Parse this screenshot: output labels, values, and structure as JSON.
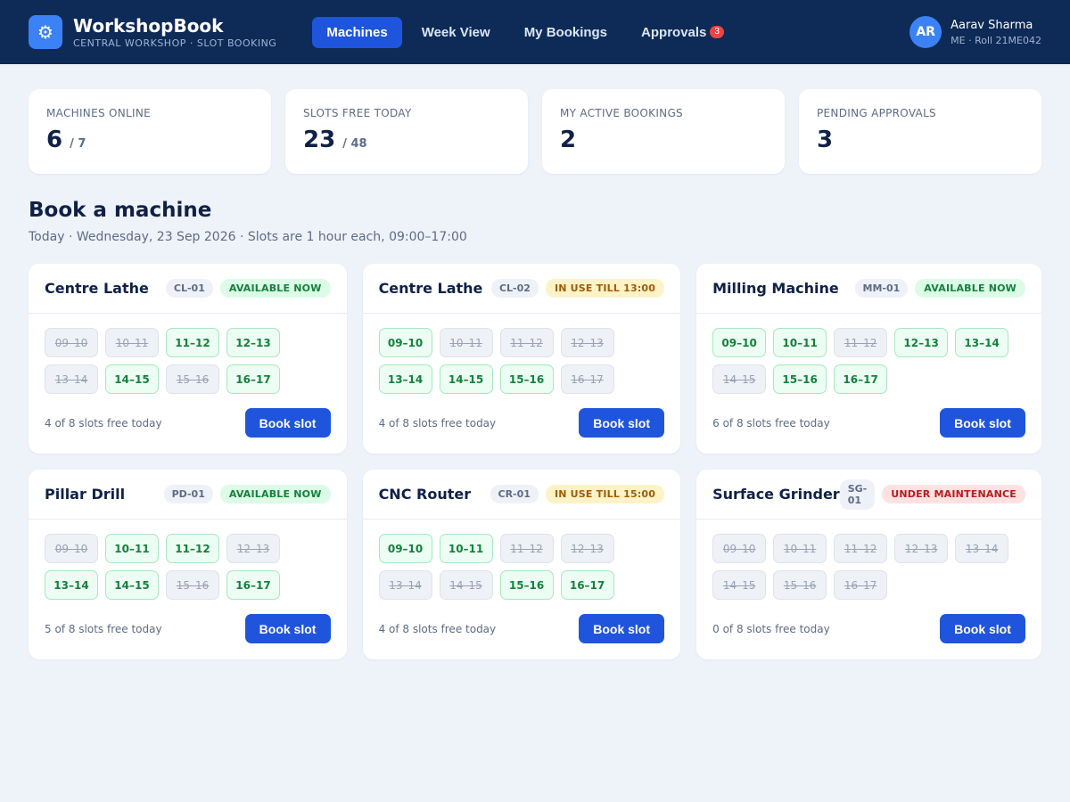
{
  "app": {
    "title": "WorkshopBook",
    "subtitle": "CENTRAL WORKSHOP · SLOT BOOKING",
    "logo_icon": "gear-icon",
    "logo_glyph": "⚙"
  },
  "nav": [
    {
      "label": "Machines",
      "active": true,
      "count": ""
    },
    {
      "label": "Week View",
      "active": false,
      "count": ""
    },
    {
      "label": "My Bookings",
      "active": false,
      "count": ""
    },
    {
      "label": "Approvals",
      "active": false,
      "count": "3"
    }
  ],
  "user": {
    "initials": "AR",
    "name": "Aarav Sharma",
    "meta": "ME · Roll 21ME042"
  },
  "stats": [
    {
      "label": "MACHINES ONLINE",
      "value": "6",
      "total": "/ 7"
    },
    {
      "label": "SLOTS FREE TODAY",
      "value": "23",
      "total": "/ 48"
    },
    {
      "label": "MY ACTIVE BOOKINGS",
      "value": "2",
      "total": ""
    },
    {
      "label": "PENDING APPROVALS",
      "value": "3",
      "total": ""
    }
  ],
  "section": {
    "title": "Book a machine",
    "subtitle": "Today · Wednesday, 23 Sep 2026 · Slots are 1 hour each, 09:00–17:00"
  },
  "book_label": "Book slot",
  "machines": [
    {
      "name": "Centre Lathe",
      "code": "CL-01",
      "status": "AVAILABLE NOW",
      "status_type": "available",
      "slots": [
        {
          "label": "09–10",
          "free": false
        },
        {
          "label": "10–11",
          "free": false
        },
        {
          "label": "11–12",
          "free": true
        },
        {
          "label": "12–13",
          "free": true
        },
        {
          "label": "13–14",
          "free": false
        },
        {
          "label": "14–15",
          "free": true
        },
        {
          "label": "15–16",
          "free": false
        },
        {
          "label": "16–17",
          "free": true
        }
      ],
      "free_text": "4 of 8 slots free today"
    },
    {
      "name": "Centre Lathe",
      "code": "CL-02",
      "status": "IN USE TILL 13:00",
      "status_type": "inuse",
      "slots": [
        {
          "label": "09–10",
          "free": true
        },
        {
          "label": "10–11",
          "free": false
        },
        {
          "label": "11–12",
          "free": false
        },
        {
          "label": "12–13",
          "free": false
        },
        {
          "label": "13–14",
          "free": true
        },
        {
          "label": "14–15",
          "free": true
        },
        {
          "label": "15–16",
          "free": true
        },
        {
          "label": "16–17",
          "free": false
        }
      ],
      "free_text": "4 of 8 slots free today"
    },
    {
      "name": "Milling Machine",
      "code": "MM-01",
      "status": "AVAILABLE NOW",
      "status_type": "available",
      "slots": [
        {
          "label": "09–10",
          "free": true
        },
        {
          "label": "10–11",
          "free": true
        },
        {
          "label": "11–12",
          "free": false
        },
        {
          "label": "12–13",
          "free": true
        },
        {
          "label": "13–14",
          "free": true
        },
        {
          "label": "14–15",
          "free": false
        },
        {
          "label": "15–16",
          "free": true
        },
        {
          "label": "16–17",
          "free": true
        }
      ],
      "free_text": "6 of 8 slots free today"
    },
    {
      "name": "Pillar Drill",
      "code": "PD-01",
      "status": "AVAILABLE NOW",
      "status_type": "available",
      "slots": [
        {
          "label": "09–10",
          "free": false
        },
        {
          "label": "10–11",
          "free": true
        },
        {
          "label": "11–12",
          "free": true
        },
        {
          "label": "12–13",
          "free": false
        },
        {
          "label": "13–14",
          "free": true
        },
        {
          "label": "14–15",
          "free": true
        },
        {
          "label": "15–16",
          "free": false
        },
        {
          "label": "16–17",
          "free": true
        }
      ],
      "free_text": "5 of 8 slots free today"
    },
    {
      "name": "CNC Router",
      "code": "CR-01",
      "status": "IN USE TILL 15:00",
      "status_type": "inuse",
      "slots": [
        {
          "label": "09–10",
          "free": true
        },
        {
          "label": "10–11",
          "free": true
        },
        {
          "label": "11–12",
          "free": false
        },
        {
          "label": "12–13",
          "free": false
        },
        {
          "label": "13–14",
          "free": false
        },
        {
          "label": "14–15",
          "free": false
        },
        {
          "label": "15–16",
          "free": true
        },
        {
          "label": "16–17",
          "free": true
        }
      ],
      "free_text": "4 of 8 slots free today"
    },
    {
      "name": "Surface Grinder",
      "code": "SG-01",
      "status": "UNDER MAINTENANCE",
      "status_type": "maint",
      "slots": [
        {
          "label": "09–10",
          "free": false
        },
        {
          "label": "10–11",
          "free": false
        },
        {
          "label": "11–12",
          "free": false
        },
        {
          "label": "12–13",
          "free": false
        },
        {
          "label": "13–14",
          "free": false
        },
        {
          "label": "14–15",
          "free": false
        },
        {
          "label": "15–16",
          "free": false
        },
        {
          "label": "16–17",
          "free": false
        }
      ],
      "free_text": "0 of 8 slots free today"
    }
  ]
}
